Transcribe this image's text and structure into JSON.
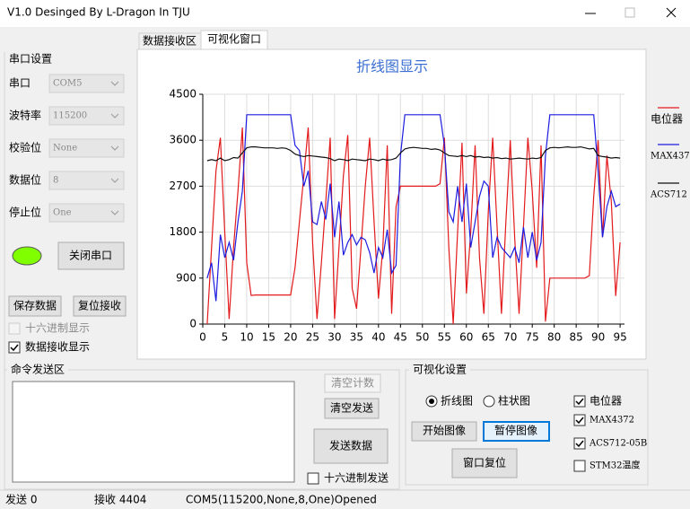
{
  "window": {
    "title": "V1.0 Desinged  By L-Dragon In TJU"
  },
  "tabs": [
    "数据接收区",
    "可视化窗口"
  ],
  "serial": {
    "title": "串口设置",
    "fields": [
      {
        "label": "串口",
        "value": "COM5"
      },
      {
        "label": "波特率",
        "value": "115200"
      },
      {
        "label": "校验位",
        "value": "None"
      },
      {
        "label": "数据位",
        "value": "8"
      },
      {
        "label": "停止位",
        "value": "One"
      }
    ],
    "close_button": "关闭串口",
    "save_button": "保存数据",
    "reset_button": "复位接收",
    "hex_display": "十六进制显示",
    "show_received": "数据接收显示"
  },
  "command": {
    "title": "命令发送区",
    "clear_count": "清空计数",
    "clear_send": "清空发送",
    "send": "发送数据",
    "hex_send": "十六进制发送"
  },
  "visual": {
    "title": "可视化设置",
    "line": "折线图",
    "bar": "柱状图",
    "start": "开始图像",
    "pause": "暂停图像",
    "reset": "窗口复位",
    "checks": [
      "电位器",
      "MAX4372",
      "ACS712-05B",
      "STM32温度"
    ]
  },
  "status": {
    "sent": "发送 0",
    "received": "接收 4404",
    "port": "COM5(115200,None,8,One)Opened"
  },
  "chart_data": {
    "type": "line",
    "title": "折线图显示",
    "grid": true,
    "legend": "right",
    "xlim": [
      0,
      96
    ],
    "xticks": [
      0,
      5,
      10,
      15,
      20,
      25,
      30,
      35,
      40,
      45,
      50,
      55,
      60,
      65,
      70,
      75,
      80,
      85,
      90,
      95
    ],
    "ylim": [
      0,
      4500
    ],
    "yticks": [
      0,
      900,
      1800,
      2700,
      3600,
      4500
    ],
    "x": [
      1,
      2,
      3,
      4,
      5,
      6,
      7,
      8,
      9,
      10,
      11,
      12,
      13,
      14,
      15,
      16,
      17,
      18,
      19,
      20,
      21,
      22,
      23,
      24,
      25,
      26,
      27,
      28,
      29,
      30,
      31,
      32,
      33,
      34,
      35,
      36,
      37,
      38,
      39,
      40,
      41,
      42,
      43,
      44,
      45,
      46,
      47,
      48,
      49,
      50,
      51,
      52,
      53,
      54,
      55,
      56,
      57,
      58,
      59,
      60,
      61,
      62,
      63,
      64,
      65,
      66,
      67,
      68,
      69,
      70,
      71,
      72,
      73,
      74,
      75,
      76,
      77,
      78,
      79,
      80,
      81,
      82,
      83,
      84,
      85,
      86,
      87,
      88,
      89,
      90,
      91,
      92,
      93,
      94,
      95
    ],
    "series": [
      {
        "name": "电位器",
        "color": "#e31a1c",
        "values": [
          0,
          1500,
          3000,
          3650,
          1800,
          100,
          1500,
          2600,
          3850,
          1200,
          560,
          570,
          570,
          570,
          570,
          570,
          570,
          570,
          570,
          570,
          1100,
          2000,
          2900,
          3850,
          1600,
          100,
          1200,
          2400,
          3650,
          100,
          1500,
          2900,
          3700,
          700,
          300,
          1500,
          2700,
          3650,
          2000,
          500,
          1500,
          3500,
          200,
          2300,
          2700,
          2700,
          2700,
          2700,
          2700,
          2700,
          2700,
          2700,
          2700,
          2750,
          3650,
          1500,
          0,
          1800,
          3550,
          600,
          1800,
          3500,
          1300,
          200,
          2200,
          3650,
          1900,
          200,
          2000,
          3600,
          1700,
          200,
          1900,
          3650,
          2600,
          1100,
          3500,
          50,
          900,
          900,
          900,
          900,
          900,
          900,
          900,
          900,
          900,
          950,
          2500,
          3600,
          1700,
          3300,
          2400,
          550,
          1600
        ]
      },
      {
        "name": "MAX4372",
        "color": "#1c1ce0",
        "values": [
          900,
          1200,
          450,
          1750,
          1300,
          1600,
          1250,
          2000,
          2600,
          4100,
          4100,
          4100,
          4100,
          4100,
          4100,
          4100,
          4100,
          4100,
          4100,
          4100,
          3500,
          3400,
          2700,
          3000,
          2000,
          1950,
          2400,
          2050,
          2750,
          1700,
          2400,
          1350,
          1600,
          1750,
          1550,
          1700,
          1650,
          1400,
          1000,
          1500,
          1300,
          1850,
          1000,
          1150,
          3300,
          4100,
          4100,
          4100,
          4100,
          4100,
          4100,
          4100,
          4100,
          4100,
          3500,
          2200,
          2000,
          2700,
          2000,
          2750,
          1500,
          2000,
          2500,
          2800,
          2700,
          1300,
          1700,
          1500,
          1400,
          1300,
          1500,
          1200,
          1900,
          1300,
          1800,
          1250,
          1600,
          3300,
          4100,
          4100,
          4100,
          4100,
          4100,
          4100,
          4100,
          4100,
          4100,
          4100,
          4100,
          3000,
          1700,
          2300,
          2600,
          2300,
          2350
        ]
      },
      {
        "name": "ACS712",
        "color": "#111111",
        "values": [
          3200,
          3220,
          3200,
          3250,
          3200,
          3220,
          3260,
          3250,
          3350,
          3450,
          3470,
          3470,
          3460,
          3450,
          3450,
          3450,
          3440,
          3450,
          3440,
          3400,
          3330,
          3300,
          3280,
          3300,
          3290,
          3280,
          3270,
          3260,
          3240,
          3200,
          3230,
          3220,
          3200,
          3230,
          3220,
          3210,
          3200,
          3230,
          3220,
          3200,
          3230,
          3210,
          3220,
          3250,
          3350,
          3430,
          3450,
          3460,
          3450,
          3440,
          3440,
          3420,
          3430,
          3410,
          3350,
          3300,
          3290,
          3280,
          3300,
          3280,
          3300,
          3270,
          3280,
          3260,
          3270,
          3250,
          3260,
          3240,
          3250,
          3230,
          3240,
          3250,
          3240,
          3230,
          3250,
          3240,
          3260,
          3400,
          3450,
          3460,
          3450,
          3460,
          3470,
          3460,
          3460,
          3470,
          3450,
          3430,
          3440,
          3300,
          3280,
          3270,
          3250,
          3260,
          3250
        ]
      }
    ]
  }
}
